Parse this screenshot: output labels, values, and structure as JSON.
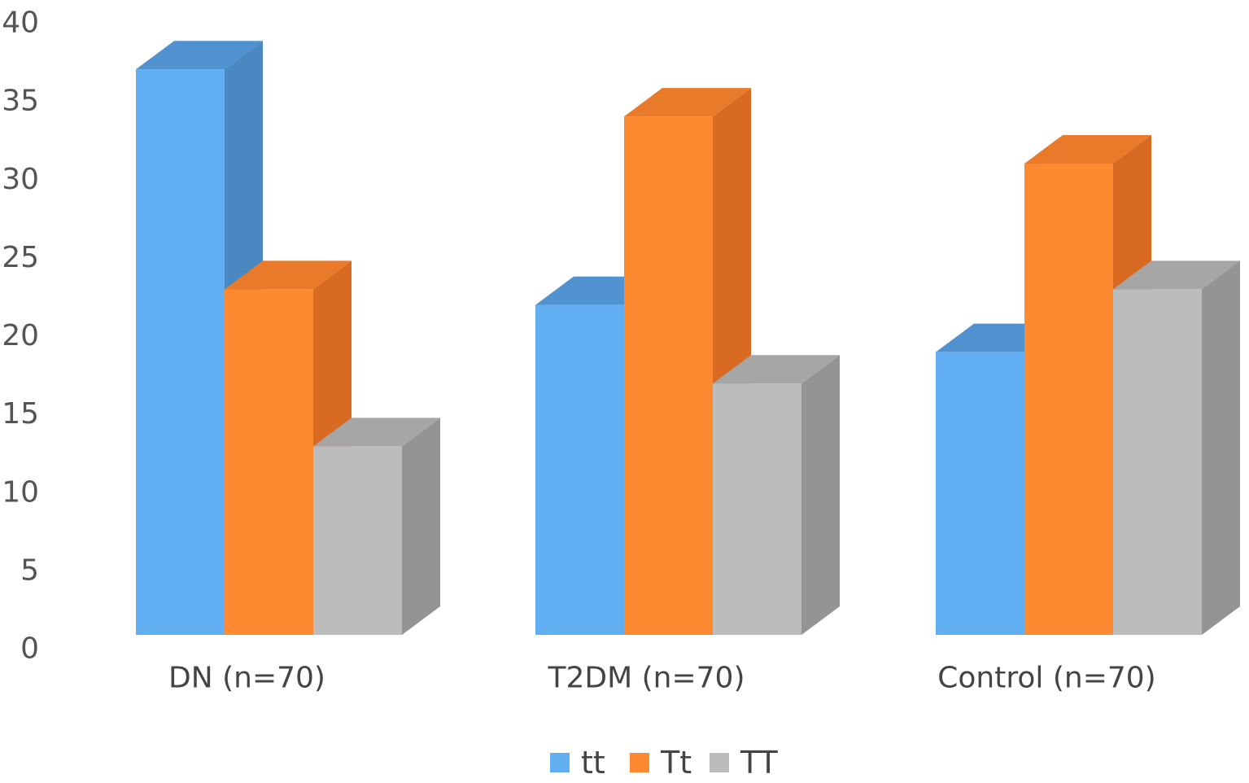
{
  "chart_data": {
    "type": "bar",
    "style": "3d-clustered-column",
    "categories": [
      "DN (n=70)",
      "T2DM (n=70)",
      "Control (n=70)"
    ],
    "series": [
      {
        "name": "tt",
        "values": [
          36,
          21,
          18
        ],
        "color": "#62aef2",
        "side_color": "#4a88c2",
        "top_color": "#4f92cf"
      },
      {
        "name": "Tt",
        "values": [
          22,
          33,
          30
        ],
        "color": "#fd8a31",
        "side_color": "#d86a22",
        "top_color": "#e97a2a"
      },
      {
        "name": "TT",
        "values": [
          12,
          16,
          22
        ],
        "color": "#bcbcbc",
        "side_color": "#949494",
        "top_color": "#a6a6a6"
      }
    ],
    "yticks": [
      0,
      5,
      10,
      15,
      20,
      25,
      30,
      35,
      40
    ],
    "ylim": [
      0,
      40
    ],
    "grid": false,
    "legend_position": "bottom"
  }
}
